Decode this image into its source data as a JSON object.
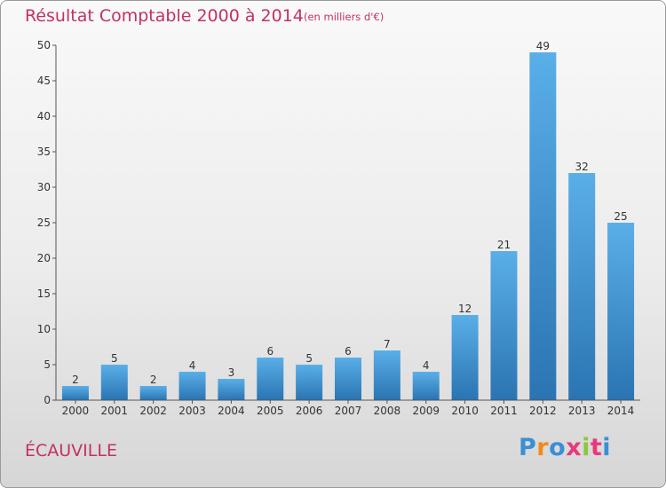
{
  "title": "Résultat Comptable 2000 à 2014",
  "subtitle": "(en milliers d'€)",
  "commune": "ÉCAUVILLE",
  "logo_text": "Proxiti",
  "colors": {
    "title": "#c3325e",
    "bar_top": "#5aafe8",
    "bar_bottom": "#2a74b2"
  },
  "chart_data": {
    "type": "bar",
    "title": "Résultat Comptable 2000 à 2014",
    "subtitle": "(en milliers d'€)",
    "xlabel": "",
    "ylabel": "",
    "categories": [
      "2000",
      "2001",
      "2002",
      "2003",
      "2004",
      "2005",
      "2006",
      "2007",
      "2008",
      "2009",
      "2010",
      "2011",
      "2012",
      "2013",
      "2014"
    ],
    "values": [
      2,
      5,
      2,
      4,
      3,
      6,
      5,
      6,
      7,
      4,
      12,
      21,
      49,
      32,
      25
    ],
    "ylim": [
      0,
      50
    ],
    "yticks": [
      0,
      5,
      10,
      15,
      20,
      25,
      30,
      35,
      40,
      45,
      50
    ],
    "grid": false,
    "data_labels": true
  }
}
